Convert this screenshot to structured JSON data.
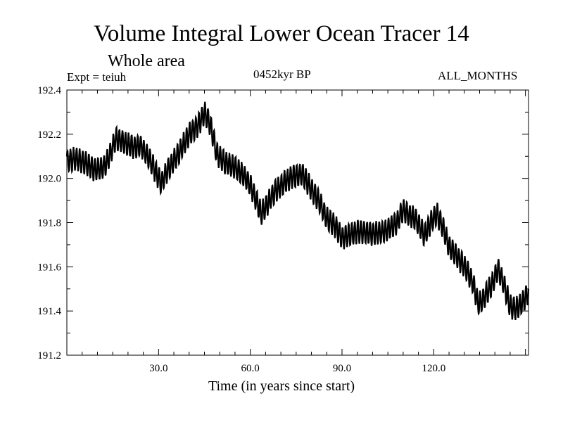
{
  "chart_data": {
    "type": "line",
    "title": "Volume Integral Lower Ocean Tracer 14",
    "subtitle": "Whole area",
    "annotations": {
      "expt": "Expt = teiuh",
      "period": "0452kyr BP",
      "months": "ALL_MONTHS"
    },
    "xlabel": "Time (in years since start)",
    "ylabel": "",
    "xlim": [
      0,
      151
    ],
    "ylim": [
      191.2,
      192.4
    ],
    "xticks": [
      30,
      60,
      90,
      120
    ],
    "xtick_labels": [
      "30.0",
      "60.0",
      "90.0",
      "120.0"
    ],
    "yticks": [
      191.2,
      191.4,
      191.6,
      191.8,
      192.0,
      192.2,
      192.4
    ],
    "ytick_labels": [
      "191.2",
      "191.4",
      "191.6",
      "191.8",
      "192.0",
      "192.2",
      "192.4"
    ],
    "seasonal_amplitude": 0.05,
    "series": [
      {
        "name": "Volume Integral Lower Ocean Tracer 14",
        "envelope": {
          "x": [
            0,
            3,
            6,
            9,
            12,
            14,
            16,
            18,
            22,
            24,
            27,
            29,
            31,
            33,
            36,
            40,
            43,
            45,
            47,
            49,
            52,
            55,
            58,
            60,
            62,
            63.5,
            65,
            68,
            71,
            74,
            77,
            80,
            82,
            85,
            88,
            90,
            93,
            96,
            100,
            104,
            108,
            110,
            112,
            114,
            117,
            119,
            121,
            123,
            125,
            128,
            131,
            133,
            134.5,
            136,
            139,
            141,
            143,
            145,
            147,
            149,
            151
          ],
          "y": [
            192.08,
            192.09,
            192.07,
            192.04,
            192.05,
            192.1,
            192.18,
            192.17,
            192.14,
            192.15,
            192.09,
            192.03,
            191.98,
            192.04,
            192.1,
            192.2,
            192.24,
            192.3,
            192.24,
            192.11,
            192.07,
            192.05,
            192.01,
            191.97,
            191.9,
            191.84,
            191.87,
            191.94,
            191.98,
            192.01,
            192.02,
            191.95,
            191.91,
            191.82,
            191.78,
            191.73,
            191.75,
            191.76,
            191.75,
            191.76,
            191.8,
            191.86,
            191.83,
            191.82,
            191.74,
            191.8,
            191.84,
            191.78,
            191.69,
            191.64,
            191.58,
            191.52,
            191.43,
            191.45,
            191.52,
            191.59,
            191.52,
            191.42,
            191.41,
            191.44,
            191.48
          ]
        }
      }
    ]
  }
}
